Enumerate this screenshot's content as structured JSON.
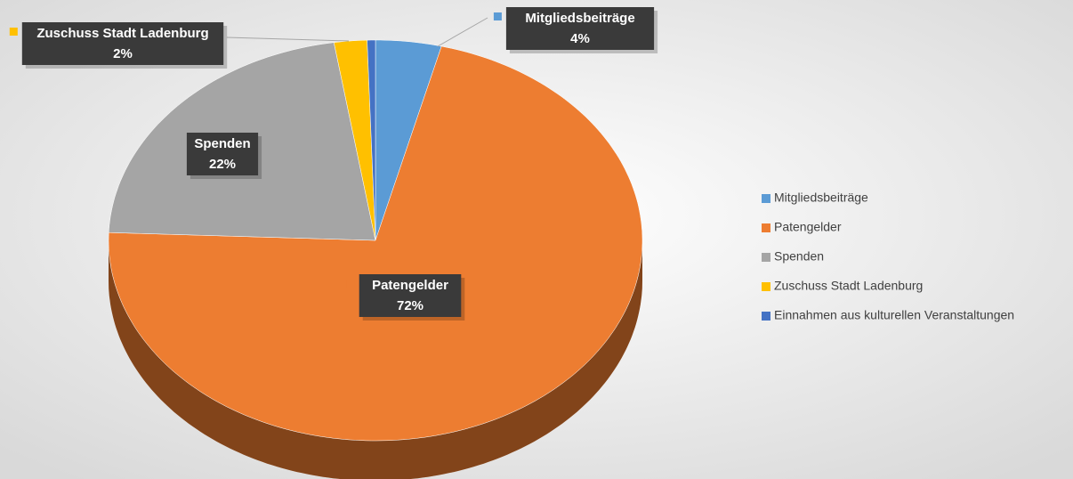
{
  "chart_data": {
    "type": "pie",
    "categories": [
      "Mitgliedsbeiträge",
      "Patengelder",
      "Spenden",
      "Zuschuss Stadt Ladenburg",
      "Einnahmen aus kulturellen Veranstaltungen"
    ],
    "values": [
      4,
      72,
      22,
      2,
      0.5
    ],
    "value_labels": [
      "4%",
      "72%",
      "22%",
      "2%",
      null
    ],
    "colors": [
      "#5b9bd5",
      "#ed7d31",
      "#a5a5a5",
      "#ffc000",
      "#4472c4"
    ],
    "legend": "right"
  }
}
